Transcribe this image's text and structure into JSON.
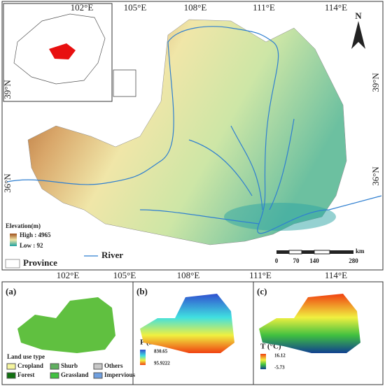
{
  "map": {
    "top_ticks": [
      "102°E",
      "105°E",
      "108°E",
      "111°E",
      "114°E"
    ],
    "bottom_ticks": [
      "102°E",
      "105°E",
      "108°E",
      "111°E",
      "114°E"
    ],
    "left_ticks": [
      "39°N",
      "36°N"
    ],
    "right_ticks": [
      "39°N",
      "36°N"
    ],
    "north": "N",
    "legend": {
      "title": "Elevation(m)",
      "high": "High : 4965",
      "low": "Low : 92",
      "river": "River",
      "province": "Province"
    },
    "scale": {
      "unit": "km",
      "labels": [
        "0",
        "70",
        "140",
        "280"
      ]
    }
  },
  "panels": [
    {
      "tag": "(a)",
      "title": "Land use type",
      "classes": [
        "Cropland",
        "Shurb",
        "Others",
        "Forest",
        "Grassland",
        "Impervious"
      ]
    },
    {
      "tag": "(b)",
      "title": "P (mm)",
      "max": "830.65",
      "min": "95.9222"
    },
    {
      "tag": "(c)",
      "title": "T (°C)",
      "max": "16.12",
      "min": "-5.73"
    }
  ]
}
